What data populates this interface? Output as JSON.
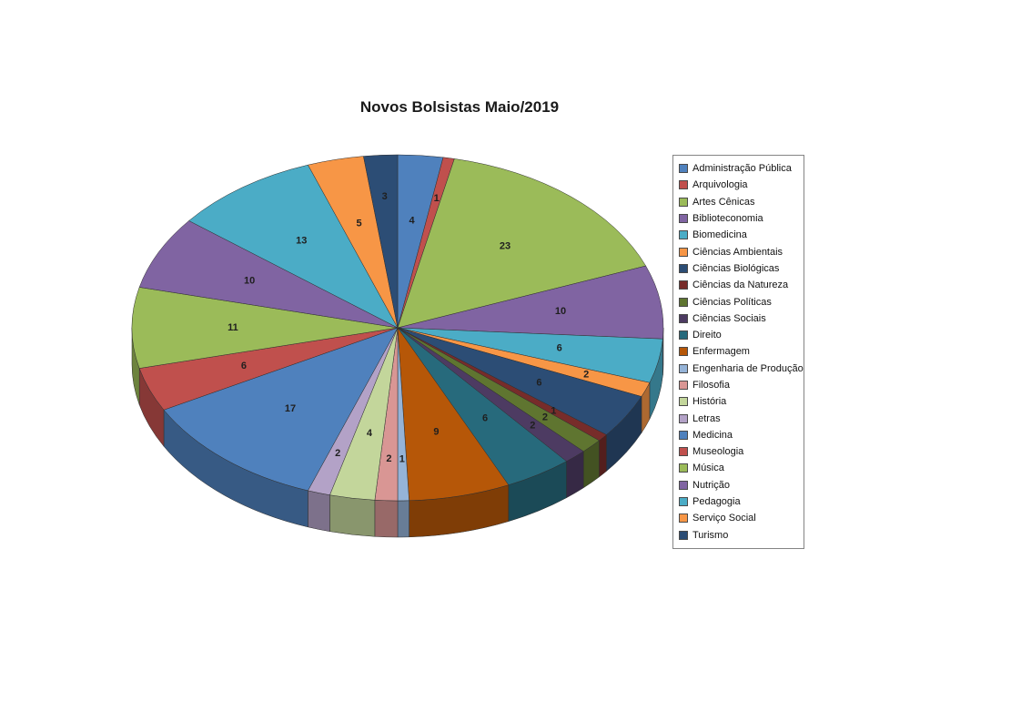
{
  "chart_data": {
    "type": "pie",
    "style": "3d",
    "title": "Novos Bolsistas Maio/2019",
    "legend_position": "right",
    "data_labels": "values",
    "background_color": "#ffffff",
    "slices": [
      {
        "label": "Administração Pública",
        "value": 4,
        "color": "#4F81BD"
      },
      {
        "label": "Arquivologia",
        "value": 1,
        "color": "#C0504D"
      },
      {
        "label": "Artes Cênicas",
        "value": 23,
        "color": "#9BBB59"
      },
      {
        "label": "Biblioteconomia",
        "value": 10,
        "color": "#8064A2"
      },
      {
        "label": "Biomedicina",
        "value": 6,
        "color": "#4BACC6"
      },
      {
        "label": "Ciências Ambientais",
        "value": 2,
        "color": "#F79646"
      },
      {
        "label": "Ciências Biológicas",
        "value": 6,
        "color": "#2C4D75"
      },
      {
        "label": "Ciências da Natureza",
        "value": 1,
        "color": "#772C2A"
      },
      {
        "label": "Ciências Políticas",
        "value": 2,
        "color": "#5F7530"
      },
      {
        "label": "Ciências Sociais",
        "value": 2,
        "color": "#4D3B62"
      },
      {
        "label": "Direito",
        "value": 6,
        "color": "#276A7C"
      },
      {
        "label": "Enfermagem",
        "value": 9,
        "color": "#B65708"
      },
      {
        "label": "Engenharia de Produção",
        "value": 1,
        "color": "#95B3D7"
      },
      {
        "label": "Filosofia",
        "value": 2,
        "color": "#D99694"
      },
      {
        "label": "História",
        "value": 4,
        "color": "#C3D69B"
      },
      {
        "label": "Letras",
        "value": 2,
        "color": "#B3A2C7"
      },
      {
        "label": "Medicina",
        "value": 17,
        "color": "#4F81BD"
      },
      {
        "label": "Museologia",
        "value": 6,
        "color": "#C0504D"
      },
      {
        "label": "Música",
        "value": 11,
        "color": "#9BBB59"
      },
      {
        "label": "Nutrição",
        "value": 10,
        "color": "#8064A2"
      },
      {
        "label": "Pedagogia",
        "value": 13,
        "color": "#4BACC6"
      },
      {
        "label": "Serviço Social",
        "value": 5,
        "color": "#F79646"
      },
      {
        "label": "Turismo",
        "value": 3,
        "color": "#2C4D75"
      }
    ]
  }
}
